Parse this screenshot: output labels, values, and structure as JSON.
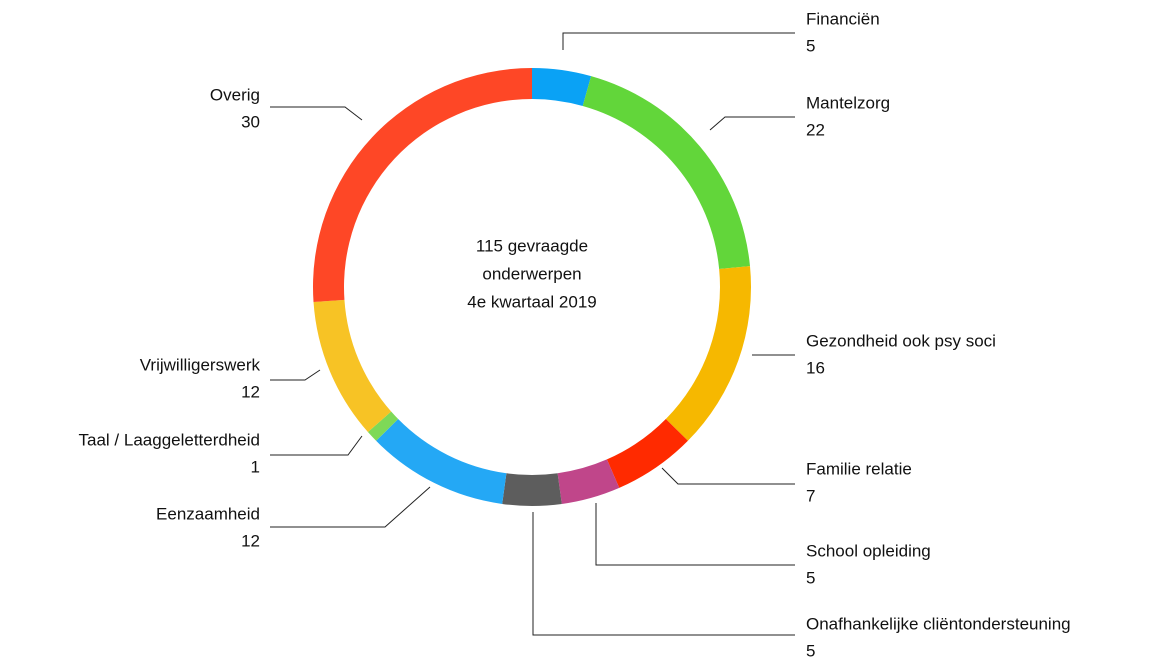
{
  "chart_data": {
    "type": "donut",
    "center_text": [
      "115 gevraagde",
      "onderwerpen",
      "4e kwartaal 2019"
    ],
    "categories": [
      "Financiën",
      "Mantelzorg",
      "Gezondheid ook psy soci",
      "Familie relatie",
      "School opleiding",
      "Onafhankelijke cliëntondersteuning",
      "Eenzaamheid",
      "Taal / Laaggeletterdheid",
      "Vrijwilligerswerk",
      "Overig"
    ],
    "values": [
      5,
      22,
      16,
      7,
      5,
      5,
      12,
      1,
      12,
      30
    ],
    "colors": [
      "#0aa2f5",
      "#62d63a",
      "#f6b800",
      "#ff2a00",
      "#c0468a",
      "#5d5d5d",
      "#24a8f5",
      "#7ed957",
      "#f7c325",
      "#fe4726"
    ]
  }
}
